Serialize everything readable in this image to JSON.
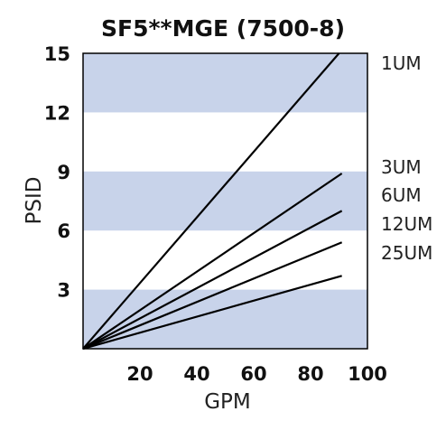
{
  "chart_data": {
    "type": "line",
    "title": "SF5**MGE (7500-8)",
    "xlabel": "GPM",
    "ylabel": "PSID",
    "xlim": [
      0,
      100
    ],
    "ylim": [
      0,
      15
    ],
    "x_ticks": [
      "20",
      "40",
      "60",
      "80",
      "100"
    ],
    "y_ticks": [
      "3",
      "6",
      "9",
      "12",
      "15"
    ],
    "band_color": "#c8d3ea",
    "line_color": "#000000",
    "series": [
      {
        "name": "1UM",
        "x": [
          0,
          90
        ],
        "y": [
          0,
          15.0
        ]
      },
      {
        "name": "3UM",
        "x": [
          0,
          91
        ],
        "y": [
          0,
          8.9
        ]
      },
      {
        "name": "6UM",
        "x": [
          0,
          91
        ],
        "y": [
          0,
          7.0
        ]
      },
      {
        "name": "12UM",
        "x": [
          0,
          91
        ],
        "y": [
          0,
          5.4
        ]
      },
      {
        "name": "25UM",
        "x": [
          0,
          91
        ],
        "y": [
          0,
          3.7
        ]
      }
    ]
  }
}
